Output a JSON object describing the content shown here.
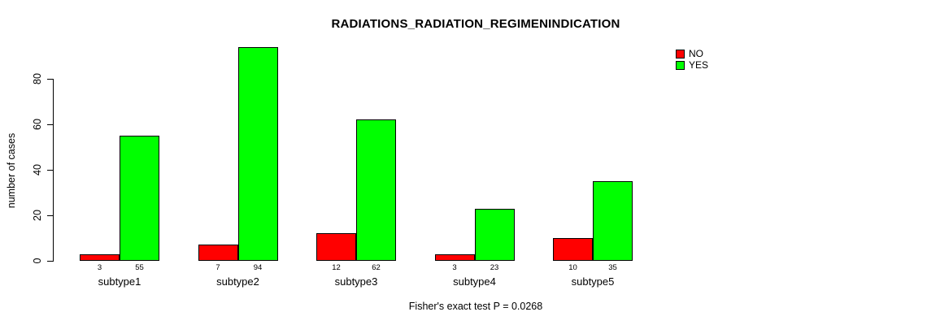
{
  "chart_data": {
    "type": "bar",
    "title": "RADIATIONS_RADIATION_REGIMENINDICATION",
    "xlabel": "",
    "ylabel": "number of cases",
    "categories": [
      "subtype1",
      "subtype2",
      "subtype3",
      "subtype4",
      "subtype5"
    ],
    "series": [
      {
        "name": "NO",
        "color": "#ff0000",
        "values": [
          3,
          7,
          12,
          3,
          10
        ]
      },
      {
        "name": "YES",
        "color": "#00ff00",
        "values": [
          55,
          94,
          62,
          23,
          35
        ]
      }
    ],
    "bar_value_labels": [
      [
        "3",
        "55"
      ],
      [
        "7",
        "94"
      ],
      [
        "12",
        "62"
      ],
      [
        "3",
        "23"
      ],
      [
        "10",
        "35"
      ]
    ],
    "yticks": [
      0,
      20,
      40,
      60,
      80
    ],
    "ylim": [
      0,
      94
    ],
    "grid": "off",
    "legend_position": "top-right",
    "annotation": "Fisher's exact test P = 0.0268"
  }
}
